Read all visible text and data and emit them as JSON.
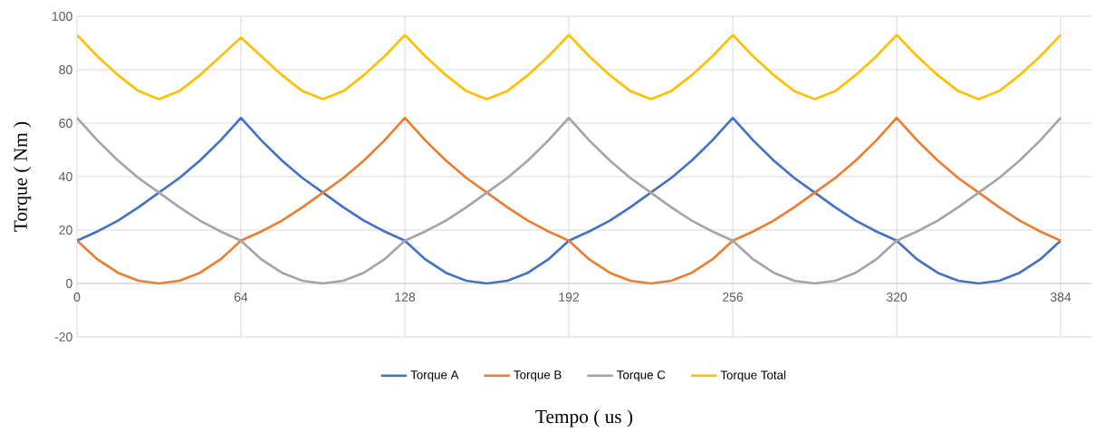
{
  "chart_data": {
    "type": "line",
    "xlabel": "Tempo ( us )",
    "ylabel": "Torque ( Nm )",
    "x": [
      0,
      8,
      16,
      24,
      32,
      40,
      48,
      56,
      64,
      72,
      80,
      88,
      96,
      104,
      112,
      120,
      128,
      136,
      144,
      152,
      160,
      168,
      176,
      184,
      192,
      200,
      208,
      216,
      224,
      232,
      240,
      248,
      256,
      264,
      272,
      280,
      288,
      296,
      304,
      312,
      320,
      328,
      336,
      344,
      352,
      360,
      368,
      376,
      384
    ],
    "xlim": [
      0,
      396
    ],
    "xticks": [
      0,
      64,
      128,
      192,
      256,
      320,
      384
    ],
    "ylim": [
      -20,
      100
    ],
    "yticks": [
      -20,
      0,
      20,
      40,
      60,
      80,
      100
    ],
    "grid": true,
    "legend": "bottom",
    "marker": "none",
    "line_style": "solid",
    "series": [
      {
        "name": "Torque A",
        "color": "#4472c4",
        "values": [
          16,
          19.5,
          23.5,
          28.5,
          34,
          39.5,
          46,
          53.5,
          62,
          53.5,
          46,
          39.5,
          34,
          28.5,
          23.5,
          19.5,
          16,
          9,
          4,
          1,
          0,
          1,
          4,
          9,
          16,
          19.5,
          23.5,
          28.5,
          34,
          39.5,
          46,
          53.5,
          62,
          53.5,
          46,
          39.5,
          34,
          28.5,
          23.5,
          19.5,
          16,
          9,
          4,
          1,
          0,
          1,
          4,
          9,
          16
        ]
      },
      {
        "name": "Torque B",
        "color": "#ed7d31",
        "values": [
          16,
          9,
          4,
          1,
          0,
          1,
          4,
          9,
          16,
          19.5,
          23.5,
          28.5,
          34,
          39.5,
          46,
          53.5,
          62,
          53.5,
          46,
          39.5,
          34,
          28.5,
          23.5,
          19.5,
          16,
          9,
          4,
          1,
          0,
          1,
          4,
          9,
          16,
          19.5,
          23.5,
          28.5,
          34,
          39.5,
          46,
          53.5,
          62,
          53.5,
          46,
          39.5,
          34,
          28.5,
          23.5,
          19.5,
          16
        ]
      },
      {
        "name": "Torque C",
        "color": "#a5a5a5",
        "values": [
          62,
          53.5,
          46,
          39.5,
          34,
          28.5,
          23.5,
          19.5,
          16,
          9,
          4,
          1,
          0,
          1,
          4,
          9,
          16,
          19.5,
          23.5,
          28.5,
          34,
          39.5,
          46,
          53.5,
          62,
          53.5,
          46,
          39.5,
          34,
          28.5,
          23.5,
          19.5,
          16,
          9,
          4,
          1,
          0,
          1,
          4,
          9,
          16,
          19.5,
          23.5,
          28.5,
          34,
          39.5,
          46,
          53.5,
          62
        ]
      },
      {
        "name": "Torque Total",
        "color": "#ffc000",
        "values": [
          93,
          85,
          78,
          72,
          69,
          72,
          78,
          85,
          92,
          85,
          78,
          72,
          69,
          72,
          78,
          85,
          93,
          85,
          78,
          72,
          69,
          72,
          78,
          85,
          93,
          85,
          78,
          72,
          69,
          72,
          78,
          85,
          93,
          85,
          78,
          72,
          69,
          72,
          78,
          85,
          93,
          85,
          78,
          72,
          69,
          72,
          78,
          85,
          93
        ]
      }
    ]
  }
}
